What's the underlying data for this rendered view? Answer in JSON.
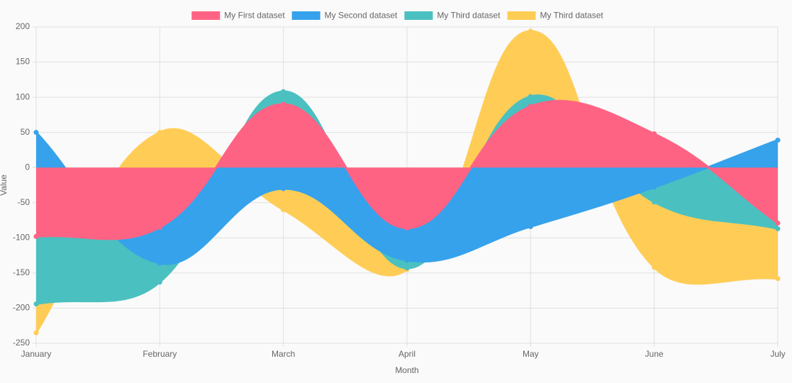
{
  "chart_data": {
    "type": "area",
    "x_label": "Month",
    "y_label": "Value",
    "categories": [
      "January",
      "February",
      "March",
      "April",
      "May",
      "June",
      "July"
    ],
    "series": [
      {
        "name": "My First dataset",
        "color": "#ff6384",
        "values": [
          -98,
          -85,
          90,
          -86,
          87,
          48,
          -79
        ]
      },
      {
        "name": "My Second dataset",
        "color": "#36a2eb",
        "values": [
          50,
          -136,
          -30,
          -132,
          -84,
          -28,
          39
        ]
      },
      {
        "name": "My Third dataset",
        "color": "#4bc0c0",
        "values": [
          -194,
          -163,
          108,
          -143,
          101,
          -49,
          -87
        ]
      },
      {
        "name": "My Third dataset",
        "color": "#ffcd56",
        "values": [
          -235,
          50,
          -60,
          -145,
          194,
          -142,
          -158
        ]
      }
    ],
    "ylim": [
      -250,
      200
    ],
    "yticks": [
      -250,
      -200,
      -150,
      -100,
      -50,
      0,
      50,
      100,
      150,
      200
    ],
    "grid": true,
    "legend": "top"
  }
}
